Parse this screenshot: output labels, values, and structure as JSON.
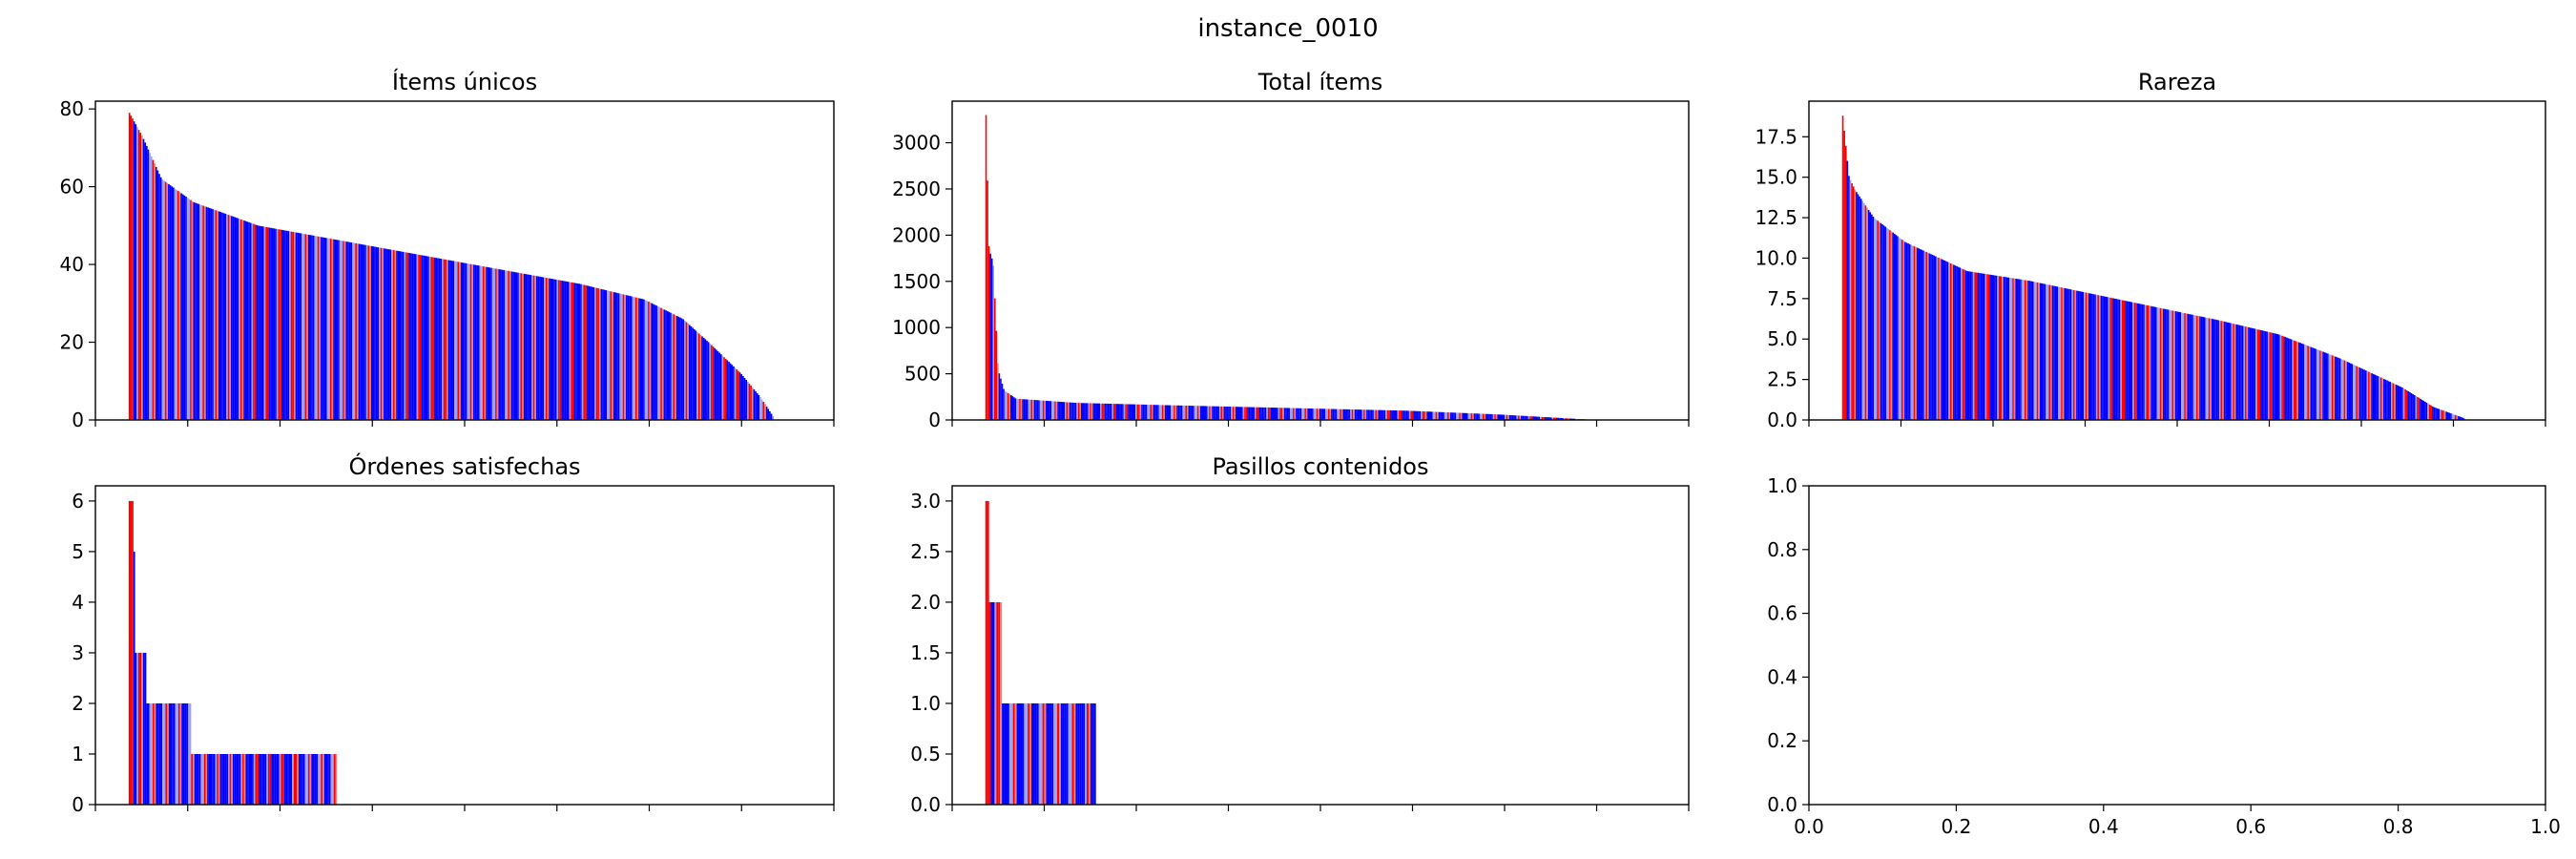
{
  "suptitle": "instance_0010",
  "colors": {
    "red": "#ff0000",
    "blue": "#0000ff",
    "light_red": "#f08080",
    "light_blue": "#9f9ff2"
  },
  "chart_data": [
    {
      "type": "bar",
      "title": "Ítems únicos",
      "ylim": [
        0,
        82
      ],
      "yticks": [
        0,
        20,
        40,
        60,
        80
      ],
      "n_bars": 410,
      "bar_span": 0.96,
      "x_tick_labels": "none",
      "profile": [
        [
          0,
          79
        ],
        [
          0.02,
          73
        ],
        [
          0.05,
          62
        ],
        [
          0.1,
          56
        ],
        [
          0.2,
          50
        ],
        [
          0.3,
          47
        ],
        [
          0.4,
          44
        ],
        [
          0.5,
          41
        ],
        [
          0.6,
          38
        ],
        [
          0.7,
          35
        ],
        [
          0.8,
          31
        ],
        [
          0.86,
          26
        ],
        [
          0.9,
          20
        ],
        [
          0.95,
          12
        ],
        [
          0.98,
          6
        ],
        [
          1,
          1
        ]
      ],
      "grid": false
    },
    {
      "type": "bar",
      "title": "Total ítems",
      "ylim": [
        0,
        3450
      ],
      "yticks": [
        0,
        500,
        1000,
        1500,
        2000,
        2500,
        3000
      ],
      "n_bars": 410,
      "bar_span": 0.9,
      "x_tick_labels": "none",
      "profile": [
        [
          0,
          3300
        ],
        [
          0.005,
          1850
        ],
        [
          0.012,
          1700
        ],
        [
          0.02,
          550
        ],
        [
          0.03,
          320
        ],
        [
          0.05,
          230
        ],
        [
          0.15,
          185
        ],
        [
          0.3,
          160
        ],
        [
          0.5,
          130
        ],
        [
          0.7,
          100
        ],
        [
          0.85,
          60
        ],
        [
          1,
          5
        ]
      ],
      "grid": false
    },
    {
      "type": "bar",
      "title": "Rareza",
      "ylim": [
        0,
        19.7
      ],
      "yticks": [
        0.0,
        2.5,
        5.0,
        7.5,
        10.0,
        12.5,
        15.0,
        17.5
      ],
      "n_bars": 410,
      "bar_span": 0.93,
      "x_tick_labels": "none",
      "profile": [
        [
          0,
          18.8
        ],
        [
          0.01,
          15.0
        ],
        [
          0.02,
          14.2
        ],
        [
          0.05,
          12.5
        ],
        [
          0.1,
          11.0
        ],
        [
          0.2,
          9.2
        ],
        [
          0.3,
          8.6
        ],
        [
          0.4,
          7.8
        ],
        [
          0.5,
          7.0
        ],
        [
          0.6,
          6.2
        ],
        [
          0.7,
          5.3
        ],
        [
          0.8,
          3.8
        ],
        [
          0.9,
          2.0
        ],
        [
          0.95,
          0.8
        ],
        [
          1,
          0.1
        ]
      ],
      "grid": false
    },
    {
      "type": "bar",
      "title": "Órdenes satisfechas",
      "ylim": [
        0,
        6.3
      ],
      "yticks": [
        0,
        1,
        2,
        3,
        4,
        5,
        6
      ],
      "n_bars": 130,
      "bar_span": 0.31,
      "x_tick_labels": "none",
      "steps": [
        [
          0,
          6
        ],
        [
          0.02,
          5
        ],
        [
          0.03,
          3
        ],
        [
          0.08,
          2
        ],
        [
          0.3,
          1
        ]
      ],
      "grid": false
    },
    {
      "type": "bar",
      "title": "Pasillos contenidos",
      "ylim": [
        0,
        3.15
      ],
      "yticks": [
        0.0,
        0.5,
        1.0,
        1.5,
        2.0,
        2.5,
        3.0
      ],
      "n_bars": 60,
      "bar_span": 0.165,
      "x_tick_labels": "none",
      "steps": [
        [
          0,
          3
        ],
        [
          0.03,
          2
        ],
        [
          0.15,
          1
        ]
      ],
      "grid": false
    },
    {
      "type": "bar",
      "title": "",
      "empty": true,
      "xlim": [
        0.0,
        1.0
      ],
      "ylim": [
        0.0,
        1.0
      ],
      "xticks": [
        0.0,
        0.2,
        0.4,
        0.6,
        0.8,
        1.0
      ],
      "yticks": [
        0.0,
        0.2,
        0.4,
        0.6,
        0.8,
        1.0
      ],
      "grid": false
    }
  ]
}
